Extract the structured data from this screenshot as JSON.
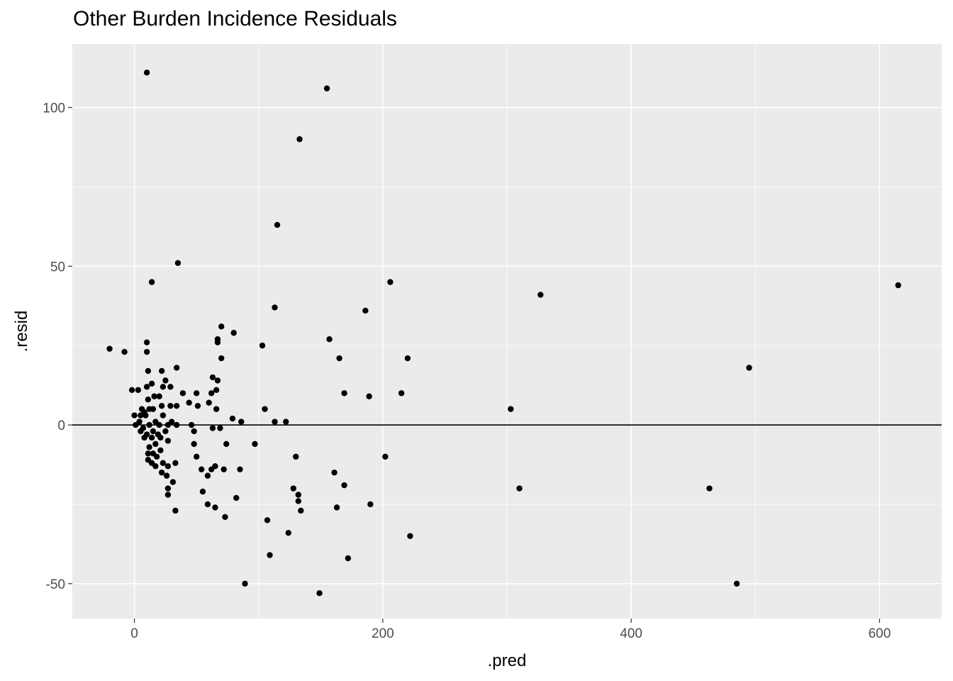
{
  "chart_data": {
    "type": "scatter",
    "title": "Other Burden Incidence Residuals",
    "xlabel": ".pred",
    "ylabel": ".resid",
    "xlim": [
      -50,
      650
    ],
    "ylim": [
      -61,
      120
    ],
    "x_ticks": [
      0,
      200,
      400,
      600
    ],
    "y_ticks": [
      -50,
      0,
      50,
      100
    ],
    "grid": true,
    "reference_line_y": 0,
    "colors": {
      "panel": "#ebebeb",
      "grid": "#ffffff",
      "point": "#000000",
      "tick_text": "#4d4d4d"
    },
    "points": [
      [
        10,
        111
      ],
      [
        155,
        106
      ],
      [
        133,
        90
      ],
      [
        115,
        63
      ],
      [
        35,
        51
      ],
      [
        14,
        45
      ],
      [
        206,
        45
      ],
      [
        327,
        41
      ],
      [
        615,
        44
      ],
      [
        113,
        37
      ],
      [
        186,
        36
      ],
      [
        70,
        31
      ],
      [
        80,
        29
      ],
      [
        67,
        27
      ],
      [
        157,
        27
      ],
      [
        67,
        26
      ],
      [
        10,
        26
      ],
      [
        -20,
        24
      ],
      [
        -8,
        23
      ],
      [
        10,
        23
      ],
      [
        103,
        25
      ],
      [
        165,
        21
      ],
      [
        70,
        21
      ],
      [
        220,
        21
      ],
      [
        495,
        18
      ],
      [
        34,
        18
      ],
      [
        22,
        17
      ],
      [
        11,
        17
      ],
      [
        63,
        15
      ],
      [
        67,
        14
      ],
      [
        25,
        14
      ],
      [
        14,
        13
      ],
      [
        10,
        12
      ],
      [
        23,
        12
      ],
      [
        29,
        12
      ],
      [
        3,
        11
      ],
      [
        -2,
        11
      ],
      [
        66,
        11
      ],
      [
        169,
        10
      ],
      [
        215,
        10
      ],
      [
        39,
        10
      ],
      [
        50,
        10
      ],
      [
        62,
        10
      ],
      [
        20,
        9
      ],
      [
        16,
        9
      ],
      [
        189,
        9
      ],
      [
        11,
        8
      ],
      [
        60,
        7
      ],
      [
        44,
        7
      ],
      [
        29,
        6
      ],
      [
        22,
        6
      ],
      [
        34,
        6
      ],
      [
        51,
        6
      ],
      [
        12,
        5
      ],
      [
        6,
        5
      ],
      [
        8,
        4
      ],
      [
        15,
        5
      ],
      [
        66,
        5
      ],
      [
        105,
        5
      ],
      [
        303,
        5
      ],
      [
        0,
        3
      ],
      [
        5,
        3
      ],
      [
        9,
        3
      ],
      [
        23,
        3
      ],
      [
        79,
        2
      ],
      [
        86,
        1
      ],
      [
        122,
        1
      ],
      [
        113,
        1
      ],
      [
        30,
        1
      ],
      [
        4,
        1
      ],
      [
        17,
        1
      ],
      [
        27,
        0
      ],
      [
        1,
        0
      ],
      [
        34,
        0
      ],
      [
        46,
        0
      ],
      [
        12,
        0
      ],
      [
        20,
        0
      ],
      [
        7,
        -1
      ],
      [
        69,
        -1
      ],
      [
        63,
        -1
      ],
      [
        15,
        -2
      ],
      [
        48,
        -2
      ],
      [
        5,
        -2
      ],
      [
        25,
        -2
      ],
      [
        10,
        -3
      ],
      [
        19,
        -3
      ],
      [
        8,
        -4
      ],
      [
        14,
        -4
      ],
      [
        21,
        -4
      ],
      [
        27,
        -5
      ],
      [
        17,
        -6
      ],
      [
        97,
        -6
      ],
      [
        74,
        -6
      ],
      [
        48,
        -6
      ],
      [
        12,
        -7
      ],
      [
        21,
        -8
      ],
      [
        11,
        -9
      ],
      [
        15,
        -9
      ],
      [
        18,
        -10
      ],
      [
        50,
        -10
      ],
      [
        130,
        -10
      ],
      [
        202,
        -10
      ],
      [
        11,
        -11
      ],
      [
        14,
        -12
      ],
      [
        23,
        -12
      ],
      [
        33,
        -12
      ],
      [
        27,
        -13
      ],
      [
        17,
        -13
      ],
      [
        65,
        -13
      ],
      [
        85,
        -14
      ],
      [
        62,
        -14
      ],
      [
        72,
        -14
      ],
      [
        54,
        -14
      ],
      [
        161,
        -15
      ],
      [
        22,
        -15
      ],
      [
        26,
        -16
      ],
      [
        59,
        -16
      ],
      [
        31,
        -18
      ],
      [
        169,
        -19
      ],
      [
        27,
        -20
      ],
      [
        128,
        -20
      ],
      [
        310,
        -20
      ],
      [
        463,
        -20
      ],
      [
        55,
        -21
      ],
      [
        27,
        -22
      ],
      [
        132,
        -22
      ],
      [
        82,
        -23
      ],
      [
        132,
        -24
      ],
      [
        59,
        -25
      ],
      [
        65,
        -26
      ],
      [
        190,
        -25
      ],
      [
        163,
        -26
      ],
      [
        134,
        -27
      ],
      [
        33,
        -27
      ],
      [
        73,
        -29
      ],
      [
        107,
        -30
      ],
      [
        124,
        -34
      ],
      [
        222,
        -35
      ],
      [
        109,
        -41
      ],
      [
        172,
        -42
      ],
      [
        89,
        -50
      ],
      [
        485,
        -50
      ],
      [
        149,
        -53
      ]
    ]
  }
}
